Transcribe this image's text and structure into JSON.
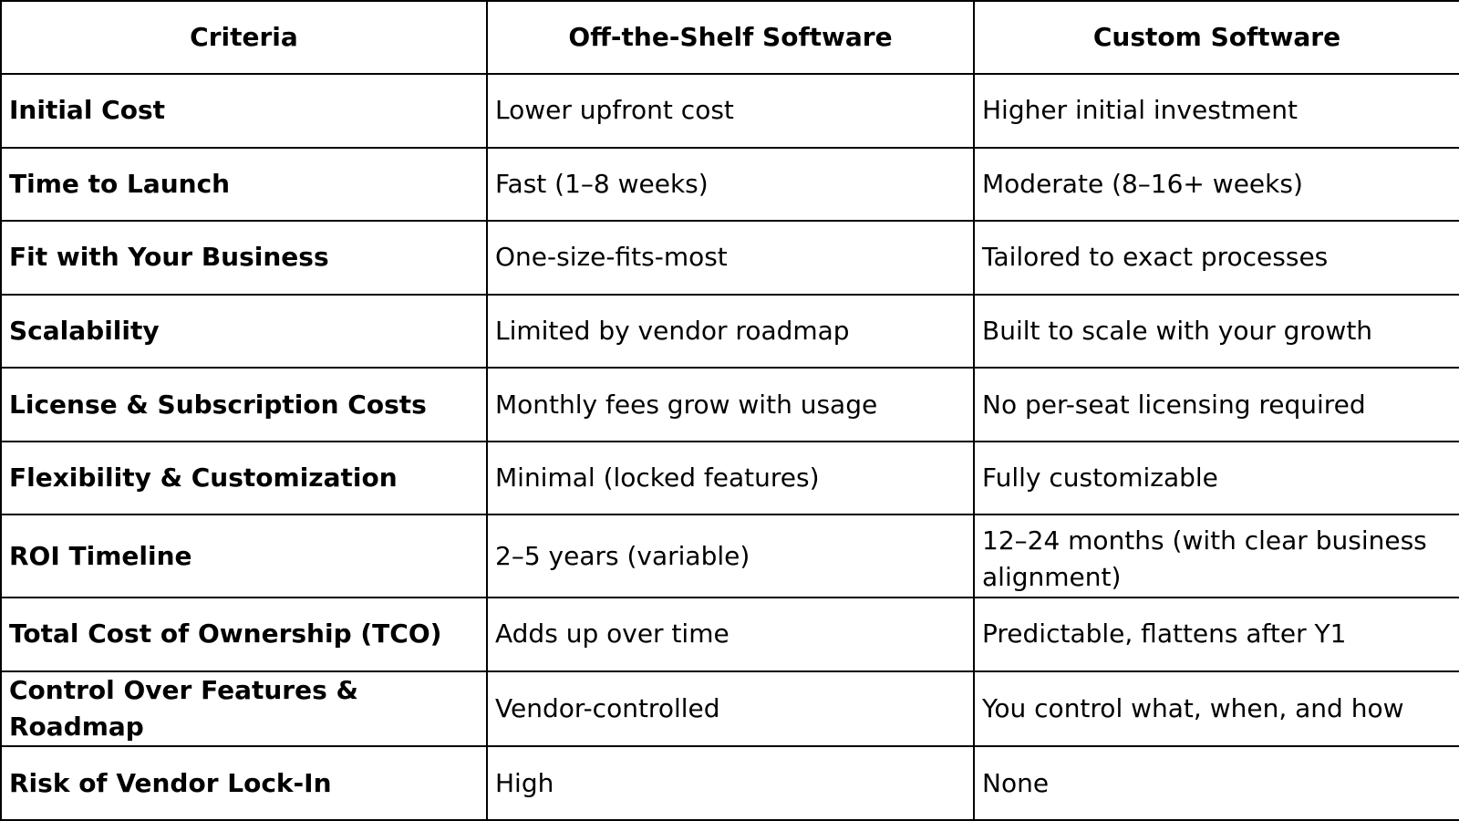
{
  "table": {
    "headers": [
      "Criteria",
      "Off-the-Shelf Software",
      "Custom Software"
    ],
    "rows": [
      [
        "Initial Cost",
        "Lower upfront cost",
        "Higher initial investment"
      ],
      [
        "Time to Launch",
        "Fast (1–8 weeks)",
        "Moderate (8–16+ weeks)"
      ],
      [
        "Fit with Your Business",
        "One-size-fits-most",
        "Tailored to exact processes"
      ],
      [
        "Scalability",
        "Limited by vendor roadmap",
        "Built to scale with your growth"
      ],
      [
        "License & Subscription Costs",
        "Monthly fees grow with usage",
        "No per-seat licensing required"
      ],
      [
        "Flexibility & Customization",
        "Minimal (locked features)",
        "Fully customizable"
      ],
      [
        "ROI Timeline",
        "2–5 years (variable)",
        "12–24 months (with clear business alignment)"
      ],
      [
        "Total Cost of Ownership (TCO)",
        "Adds up over time",
        "Predictable, flattens after Y1"
      ],
      [
        "Control Over Features & Roadmap",
        "Vendor-controlled",
        "You control what, when, and how"
      ],
      [
        "Risk of Vendor Lock-In",
        "High",
        "None"
      ]
    ]
  }
}
